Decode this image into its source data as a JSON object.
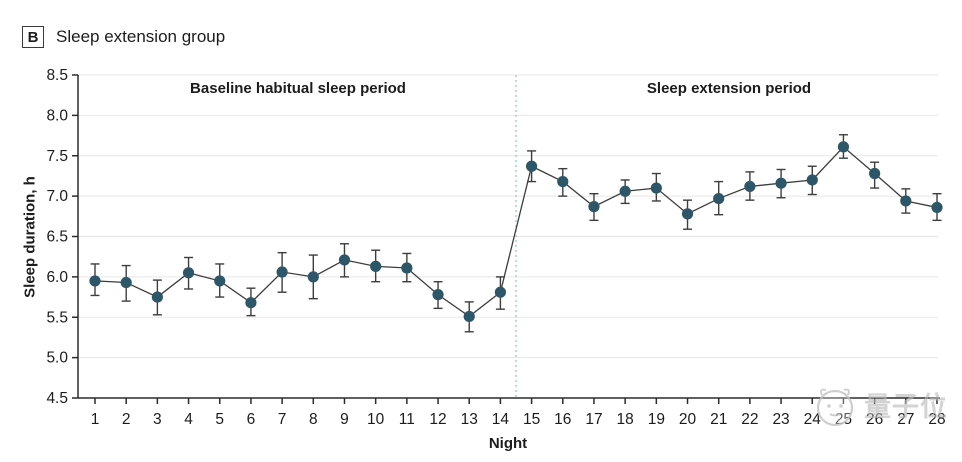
{
  "header": {
    "panel_label": "B",
    "title": "Sleep extension group"
  },
  "watermark": {
    "icon": "mascot-face",
    "text": "量子位"
  },
  "chart_data": {
    "type": "line",
    "subtype": "means-with-error-bars",
    "title": "Sleep extension group",
    "xlabel": "Night",
    "ylabel": "Sleep duration, h",
    "ylim": [
      4.5,
      8.5
    ],
    "yticks": [
      4.5,
      5.0,
      5.5,
      6.0,
      6.5,
      7.0,
      7.5,
      8.0,
      8.5
    ],
    "grid": true,
    "legend": "none",
    "x": [
      1,
      2,
      3,
      4,
      5,
      6,
      7,
      8,
      9,
      10,
      11,
      12,
      13,
      14,
      15,
      16,
      17,
      18,
      19,
      20,
      21,
      22,
      23,
      24,
      25,
      26,
      27,
      28
    ],
    "series": [
      {
        "name": "Sleep duration",
        "mean": [
          5.95,
          5.93,
          5.75,
          6.05,
          5.95,
          5.68,
          6.06,
          6.0,
          6.21,
          6.13,
          6.11,
          5.78,
          5.51,
          5.81,
          7.37,
          7.18,
          6.87,
          7.06,
          7.1,
          6.78,
          6.97,
          7.12,
          7.16,
          7.2,
          7.61,
          7.28,
          6.94,
          6.86
        ],
        "ci_low": [
          5.77,
          5.7,
          5.53,
          5.85,
          5.75,
          5.52,
          5.81,
          5.73,
          6.0,
          5.94,
          5.94,
          5.61,
          5.32,
          5.6,
          7.18,
          7.0,
          6.7,
          6.91,
          6.94,
          6.59,
          6.77,
          6.95,
          6.98,
          7.02,
          7.47,
          7.1,
          6.79,
          6.7
        ],
        "ci_high": [
          6.16,
          6.14,
          5.96,
          6.24,
          6.16,
          5.86,
          6.3,
          6.27,
          6.41,
          6.33,
          6.29,
          5.94,
          5.69,
          6.0,
          7.56,
          7.34,
          7.03,
          7.2,
          7.28,
          6.95,
          7.18,
          7.3,
          7.33,
          7.37,
          7.76,
          7.42,
          7.09,
          7.03
        ]
      }
    ],
    "annotations": [
      {
        "label": "Baseline habitual sleep period",
        "x_range": [
          1,
          14
        ]
      },
      {
        "label": "Sleep extension period",
        "x_range": [
          15,
          28
        ]
      }
    ],
    "divider_x": 14.5,
    "colors": {
      "marker": "#2d5669",
      "line": "#3d3d3d",
      "error_bar": "#3d3d3d",
      "divider": "#9fd6e6",
      "gridline": "#e7e7e7",
      "axis": "#2b2b2b",
      "text": "#1c1c1c",
      "watermark": "#bdbdbd"
    }
  }
}
